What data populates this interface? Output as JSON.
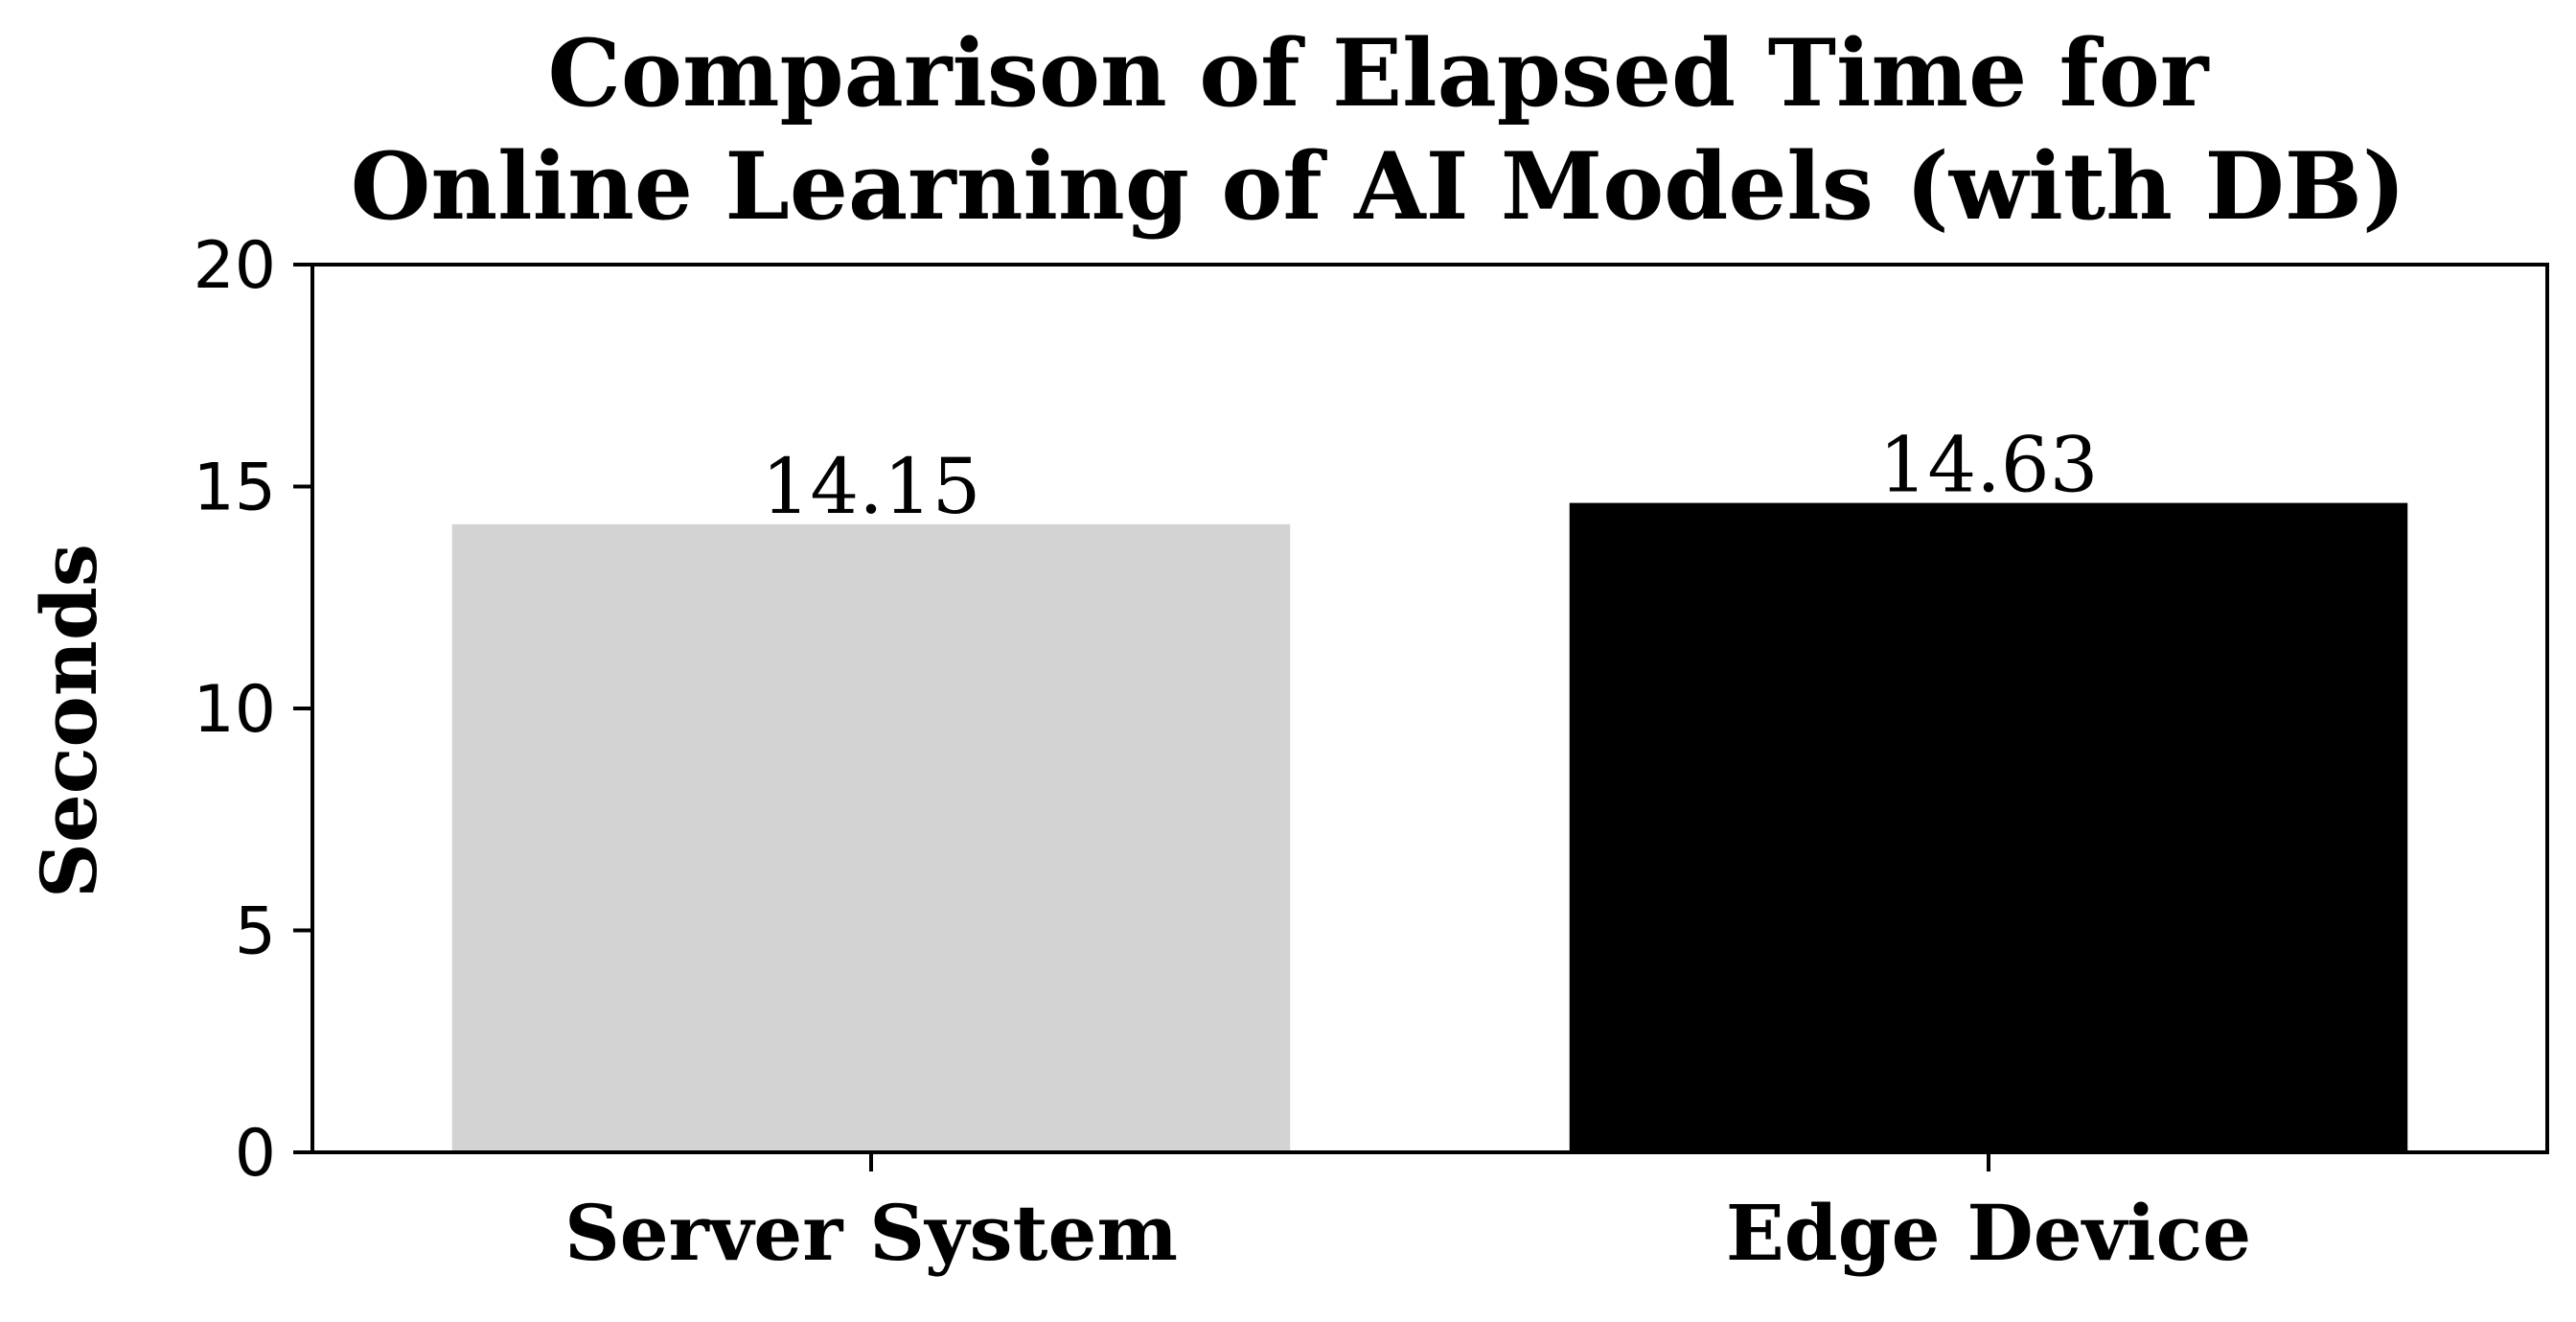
{
  "chart_data": {
    "type": "bar",
    "title_lines": [
      "Comparison of Elapsed Time for",
      "Online Learning of AI Models (with DB)"
    ],
    "xlabel": "",
    "ylabel": "Seconds",
    "categories": [
      "Server System",
      "Edge Device"
    ],
    "values": [
      14.15,
      14.63
    ],
    "data_labels": [
      "14.15",
      "14.63"
    ],
    "bar_colors": [
      "#d3d3d3",
      "#000000"
    ],
    "ylim": [
      0,
      20
    ],
    "yticks": [
      0,
      5,
      10,
      15,
      20
    ],
    "ytick_labels": [
      "0",
      "5",
      "10",
      "15",
      "20"
    ],
    "grid": false,
    "legend": "none"
  }
}
